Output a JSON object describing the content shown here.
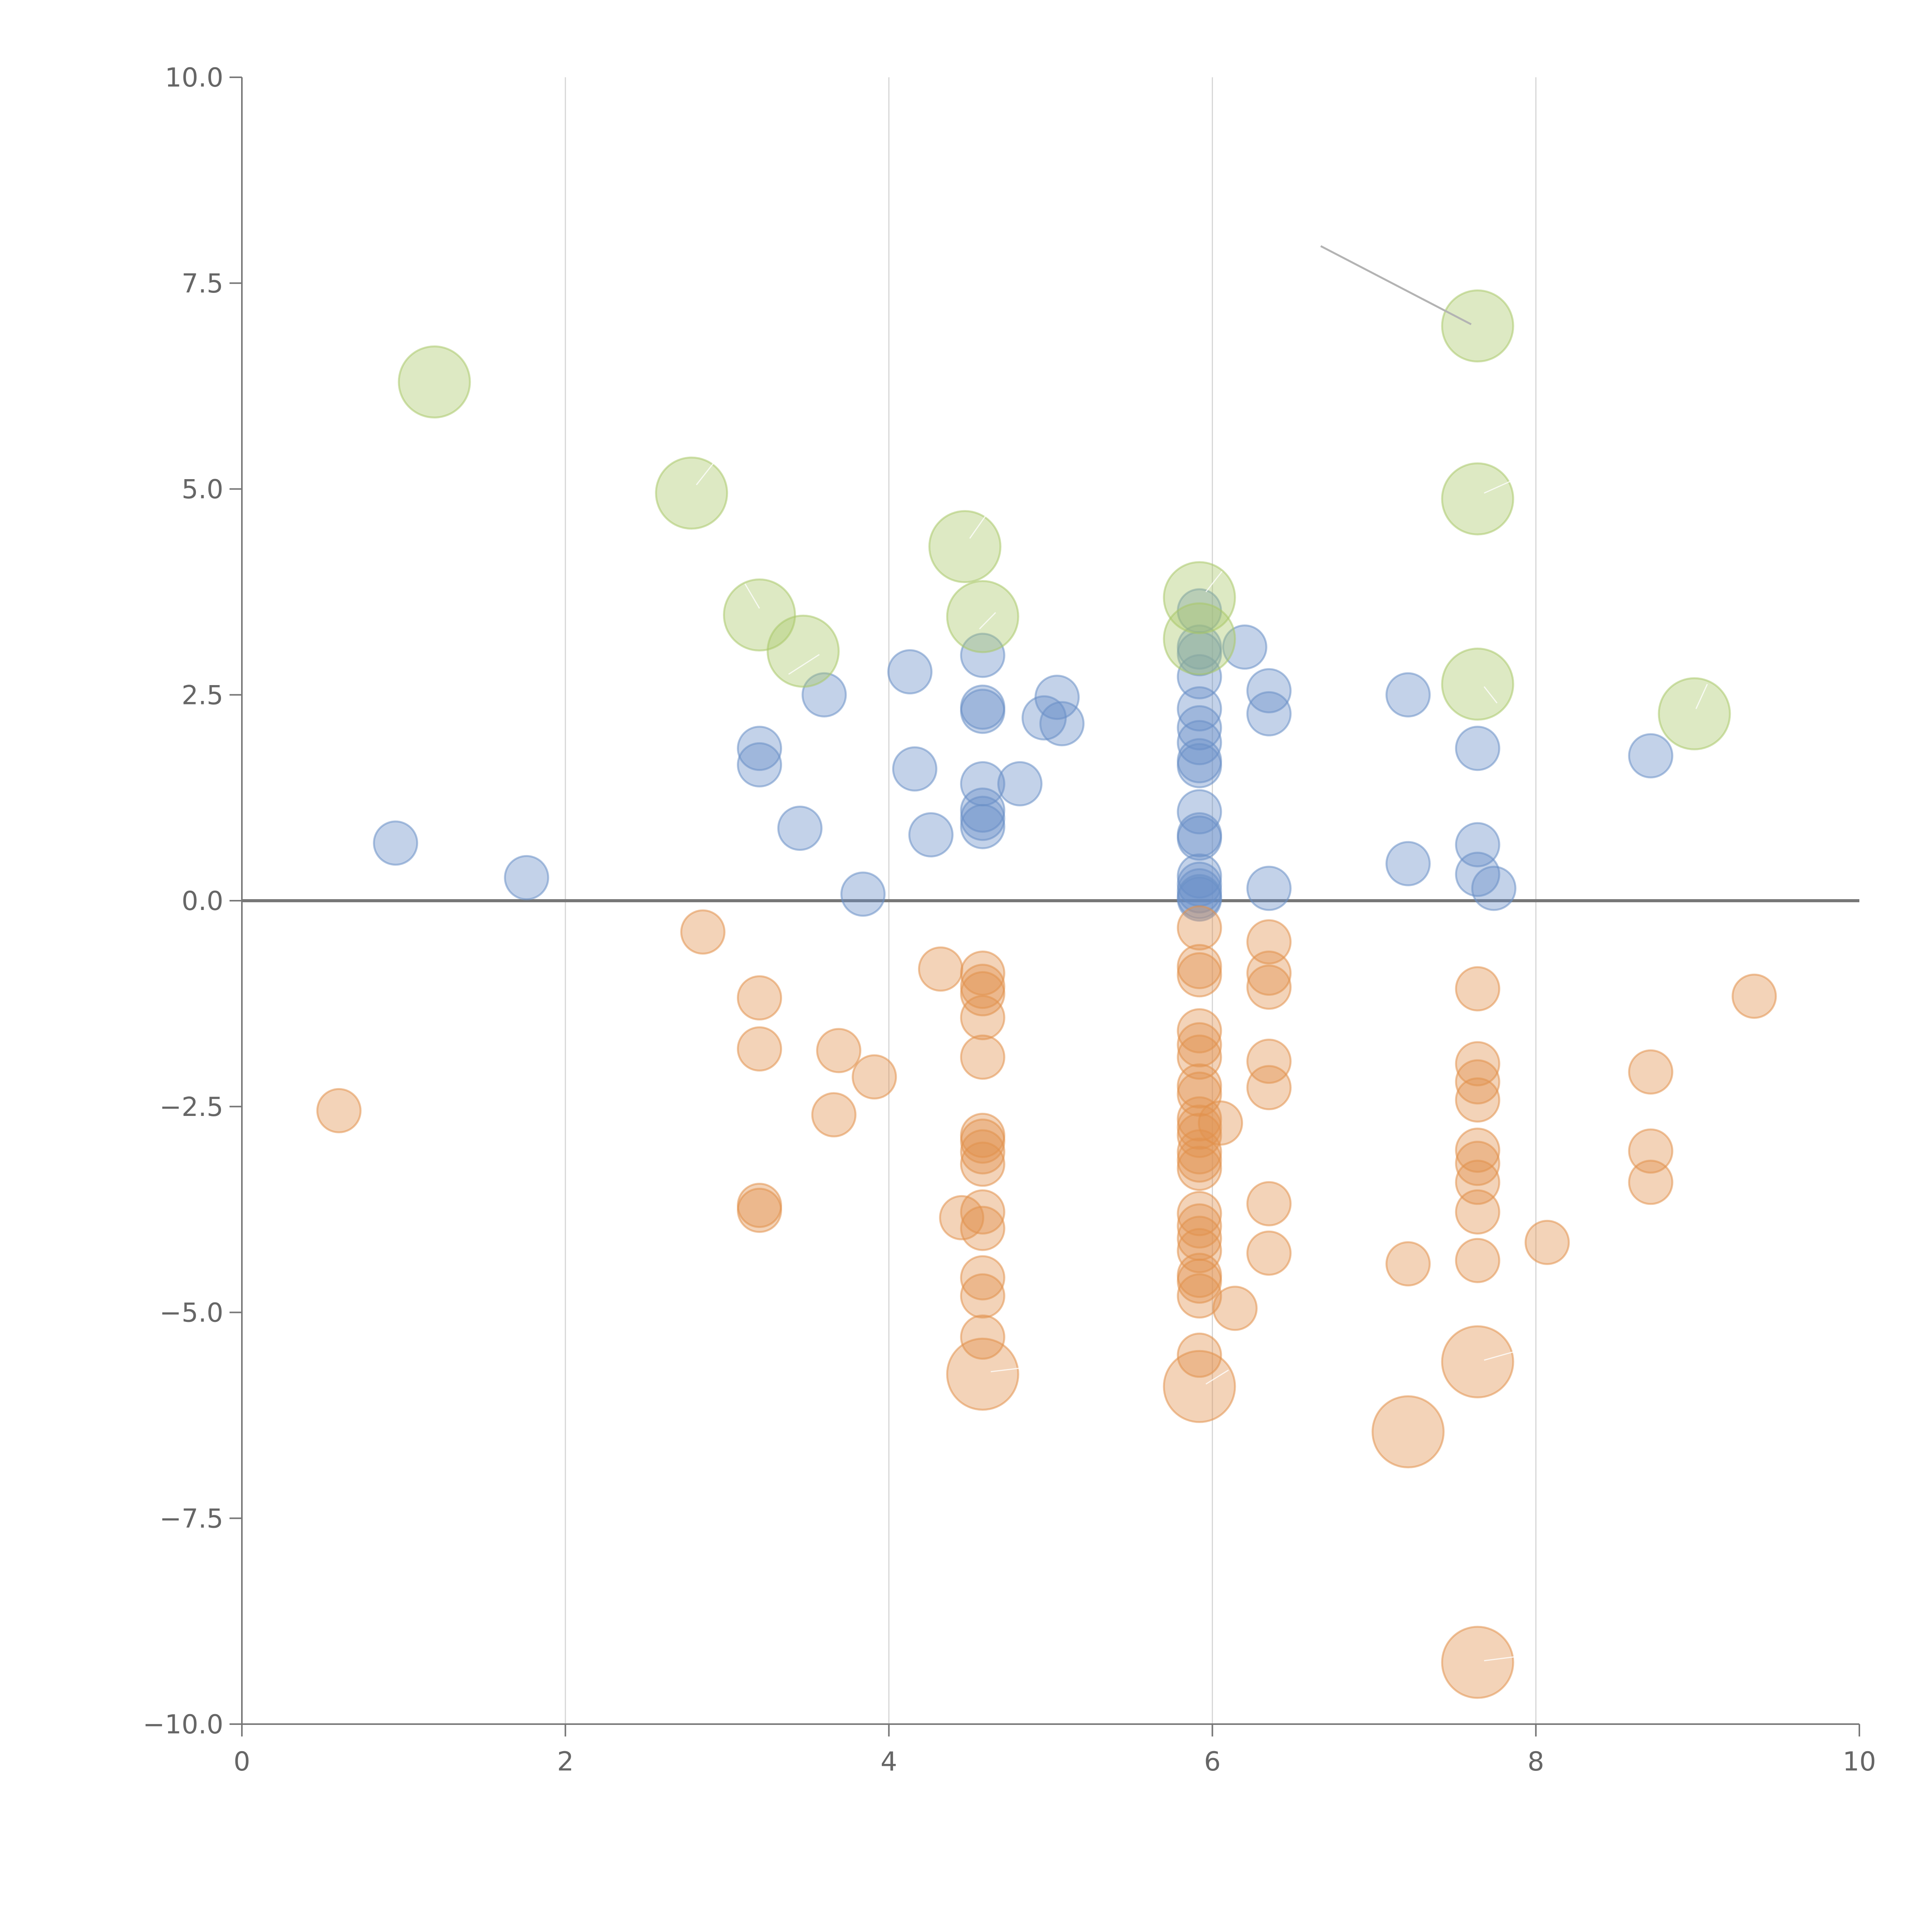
{
  "chart_data": {
    "type": "scatter",
    "title": "",
    "xlabel": "",
    "ylabel": "",
    "xlim": [
      0,
      10
    ],
    "ylim": [
      -10,
      10
    ],
    "x_ticks": [
      0,
      2,
      4,
      6,
      8,
      10
    ],
    "x_tick_labels": [
      "0",
      "2",
      "4",
      "6",
      "8",
      "10"
    ],
    "y_ticks": [
      -10,
      -7.5,
      -5,
      -2.5,
      0,
      2.5,
      5,
      7.5,
      10
    ],
    "y_tick_labels": [
      "−10.0",
      "−7.5",
      "−5.0",
      "−2.5",
      "0.0",
      "2.5",
      "5.0",
      "7.5",
      "10.0"
    ],
    "vertical_grid": true,
    "zero_line": true,
    "colors": {
      "positive": "#6a8fc7",
      "negative": "#e1924d",
      "highlight": "#a9c96a"
    },
    "series": [
      {
        "name": "positive",
        "color": "#6a8fc7",
        "points": [
          [
            0.95,
            0.7
          ],
          [
            1.76,
            0.28
          ],
          [
            3.2,
            1.85
          ],
          [
            3.2,
            1.65
          ],
          [
            3.45,
            0.88
          ],
          [
            3.6,
            2.5
          ],
          [
            3.84,
            0.08
          ],
          [
            4.13,
            2.78
          ],
          [
            4.16,
            1.6
          ],
          [
            4.26,
            0.8
          ],
          [
            4.58,
            2.98
          ],
          [
            4.58,
            2.35
          ],
          [
            4.58,
            2.3
          ],
          [
            4.58,
            1.42
          ],
          [
            4.58,
            1.1
          ],
          [
            4.58,
            1.0
          ],
          [
            4.58,
            0.9
          ],
          [
            4.81,
            1.42
          ],
          [
            4.96,
            2.22
          ],
          [
            5.04,
            2.47
          ],
          [
            5.07,
            2.15
          ],
          [
            5.92,
            3.52
          ],
          [
            5.92,
            3.08
          ],
          [
            5.92,
            3.0
          ],
          [
            5.92,
            2.72
          ],
          [
            5.92,
            2.33
          ],
          [
            5.92,
            2.1
          ],
          [
            5.92,
            1.92
          ],
          [
            5.92,
            1.7
          ],
          [
            5.92,
            1.64
          ],
          [
            5.92,
            1.08
          ],
          [
            5.92,
            0.8
          ],
          [
            5.92,
            0.76
          ],
          [
            5.92,
            0.3
          ],
          [
            5.92,
            0.2
          ],
          [
            5.92,
            0.12
          ],
          [
            5.92,
            0.05
          ],
          [
            5.92,
            0.02
          ],
          [
            6.2,
            3.08
          ],
          [
            6.35,
            2.55
          ],
          [
            6.35,
            2.27
          ],
          [
            6.35,
            0.15
          ],
          [
            7.21,
            2.5
          ],
          [
            7.21,
            0.45
          ],
          [
            7.64,
            1.85
          ],
          [
            7.64,
            0.68
          ],
          [
            7.64,
            0.32
          ],
          [
            7.74,
            0.15
          ],
          [
            8.71,
            1.76
          ]
        ]
      },
      {
        "name": "negative",
        "color": "#e1924d",
        "points": [
          [
            0.6,
            -2.55
          ],
          [
            2.85,
            -0.38
          ],
          [
            3.2,
            -1.18
          ],
          [
            3.2,
            -1.8
          ],
          [
            3.2,
            -3.7
          ],
          [
            3.2,
            -3.76
          ],
          [
            3.66,
            -2.6
          ],
          [
            3.69,
            -1.82
          ],
          [
            3.91,
            -2.14
          ],
          [
            4.32,
            -0.83
          ],
          [
            4.45,
            -3.85
          ],
          [
            4.58,
            -0.88
          ],
          [
            4.58,
            -1.04
          ],
          [
            4.58,
            -1.13
          ],
          [
            4.58,
            -1.42
          ],
          [
            4.58,
            -1.9
          ],
          [
            4.58,
            -2.85
          ],
          [
            4.58,
            -2.92
          ],
          [
            4.58,
            -3.05
          ],
          [
            4.58,
            -3.2
          ],
          [
            4.58,
            -3.78
          ],
          [
            4.58,
            -3.98
          ],
          [
            4.58,
            -4.58
          ],
          [
            4.58,
            -4.8
          ],
          [
            4.58,
            -5.3
          ],
          [
            5.92,
            -0.33
          ],
          [
            5.92,
            -0.8
          ],
          [
            5.92,
            -0.9
          ],
          [
            5.92,
            -1.58
          ],
          [
            5.92,
            -1.75
          ],
          [
            5.92,
            -1.9
          ],
          [
            5.92,
            -2.25
          ],
          [
            5.92,
            -2.35
          ],
          [
            5.92,
            -2.65
          ],
          [
            5.92,
            -2.75
          ],
          [
            5.92,
            -2.85
          ],
          [
            5.92,
            -3.05
          ],
          [
            5.92,
            -3.15
          ],
          [
            5.92,
            -3.25
          ],
          [
            5.92,
            -3.8
          ],
          [
            5.92,
            -3.95
          ],
          [
            5.92,
            -4.1
          ],
          [
            5.92,
            -4.25
          ],
          [
            5.92,
            -4.55
          ],
          [
            5.92,
            -4.62
          ],
          [
            5.92,
            -4.8
          ],
          [
            5.92,
            -5.52
          ],
          [
            6.05,
            -2.7
          ],
          [
            6.14,
            -4.95
          ],
          [
            6.35,
            -0.5
          ],
          [
            6.35,
            -0.88
          ],
          [
            6.35,
            -1.05
          ],
          [
            6.35,
            -1.95
          ],
          [
            6.35,
            -2.27
          ],
          [
            6.35,
            -3.68
          ],
          [
            6.35,
            -4.28
          ],
          [
            7.21,
            -4.41
          ],
          [
            7.64,
            -1.07
          ],
          [
            7.64,
            -1.98
          ],
          [
            7.64,
            -2.2
          ],
          [
            7.64,
            -2.42
          ],
          [
            7.64,
            -3.03
          ],
          [
            7.64,
            -3.19
          ],
          [
            7.64,
            -3.42
          ],
          [
            7.64,
            -3.78
          ],
          [
            7.64,
            -4.37
          ],
          [
            8.07,
            -4.15
          ],
          [
            8.71,
            -2.08
          ],
          [
            8.71,
            -3.04
          ],
          [
            8.71,
            -3.42
          ],
          [
            9.35,
            -1.16
          ]
        ]
      },
      {
        "name": "negative-large",
        "color": "#e1924d",
        "large": true,
        "points": [
          [
            4.58,
            -5.75
          ],
          [
            5.92,
            -5.9
          ],
          [
            7.21,
            -6.45
          ],
          [
            7.64,
            -5.6
          ],
          [
            7.64,
            -9.25
          ]
        ]
      },
      {
        "name": "highlight",
        "color": "#a9c96a",
        "large": true,
        "points": [
          [
            1.19,
            6.3
          ],
          [
            2.78,
            4.95
          ],
          [
            3.2,
            3.47
          ],
          [
            3.47,
            3.03
          ],
          [
            4.47,
            4.3
          ],
          [
            4.58,
            3.45
          ],
          [
            5.92,
            3.68
          ],
          [
            5.92,
            3.18
          ],
          [
            7.64,
            6.98
          ],
          [
            7.64,
            4.88
          ],
          [
            7.64,
            2.63
          ],
          [
            8.98,
            2.27
          ]
        ]
      }
    ],
    "annotation_leaders": [
      {
        "from": [
          6.67,
          7.95
        ],
        "to": [
          7.6,
          7.0
        ],
        "color": "#b3b3b3"
      },
      {
        "from": [
          2.81,
          5.05
        ],
        "to": [
          2.93,
          5.35
        ],
        "color": "#ffffff"
      },
      {
        "from": [
          3.2,
          3.55
        ],
        "to": [
          3.11,
          3.85
        ],
        "color": "#ffffff"
      },
      {
        "from": [
          3.38,
          2.75
        ],
        "to": [
          3.57,
          2.99
        ],
        "color": "#ffffff"
      },
      {
        "from": [
          4.5,
          4.4
        ],
        "to": [
          4.6,
          4.68
        ],
        "color": "#ffffff"
      },
      {
        "from": [
          4.66,
          3.5
        ],
        "to": [
          4.56,
          3.3
        ],
        "color": "#ffffff"
      },
      {
        "from": [
          5.96,
          3.75
        ],
        "to": [
          6.06,
          4.0
        ],
        "color": "#ffffff"
      },
      {
        "from": [
          7.68,
          4.95
        ],
        "to": [
          7.85,
          5.1
        ],
        "color": "#ffffff"
      },
      {
        "from": [
          7.68,
          2.6
        ],
        "to": [
          7.76,
          2.4
        ],
        "color": "#ffffff"
      },
      {
        "from": [
          8.99,
          2.33
        ],
        "to": [
          9.06,
          2.63
        ],
        "color": "#ffffff"
      },
      {
        "from": [
          4.63,
          -5.72
        ],
        "to": [
          4.84,
          -5.67
        ],
        "color": "#ffffff"
      },
      {
        "from": [
          5.96,
          -5.87
        ],
        "to": [
          6.1,
          -5.7
        ],
        "color": "#ffffff"
      },
      {
        "from": [
          7.68,
          -5.58
        ],
        "to": [
          7.86,
          -5.48
        ],
        "color": "#ffffff"
      },
      {
        "from": [
          7.68,
          -9.23
        ],
        "to": [
          7.88,
          -9.18
        ],
        "color": "#ffffff"
      }
    ]
  }
}
